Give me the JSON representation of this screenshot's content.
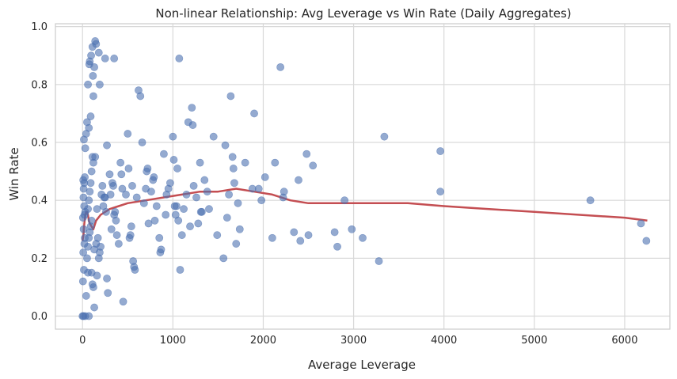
{
  "chart_data": {
    "type": "scatter",
    "title": "Non-linear Relationship: Avg Leverage vs Win Rate (Daily Aggregates)",
    "xlabel": "Average Leverage",
    "ylabel": "Win Rate",
    "xlim": [
      -300,
      6500
    ],
    "ylim": [
      -0.045,
      1.01
    ],
    "x_ticks": [
      0,
      1000,
      2000,
      3000,
      4000,
      5000,
      6000
    ],
    "x_tick_labels": [
      "0",
      "1000",
      "2000",
      "3000",
      "4000",
      "5000",
      "6000"
    ],
    "y_ticks": [
      0.0,
      0.2,
      0.4,
      0.6,
      0.8,
      1.0
    ],
    "y_tick_labels": [
      "0.0",
      "0.2",
      "0.4",
      "0.6",
      "0.8",
      "1.0"
    ],
    "grid": true,
    "legend": "none",
    "colors": {
      "scatter": "#4C72B0",
      "trend": "#C44E52",
      "grid": "#D9D9D9",
      "spine": "#CCCCCC"
    },
    "scatter_points": [
      [
        0,
        0
      ],
      [
        10,
        0
      ],
      [
        30,
        0
      ],
      [
        70,
        0
      ],
      [
        5,
        0.12
      ],
      [
        15,
        0.16
      ],
      [
        8,
        0.22
      ],
      [
        20,
        0.25
      ],
      [
        25,
        0.27
      ],
      [
        12,
        0.3
      ],
      [
        5,
        0.34
      ],
      [
        22,
        0.35
      ],
      [
        30,
        0.36
      ],
      [
        18,
        0.38
      ],
      [
        10,
        0.41
      ],
      [
        12,
        0.44
      ],
      [
        18,
        0.46
      ],
      [
        8,
        0.47
      ],
      [
        25,
        0.48
      ],
      [
        30,
        0.58
      ],
      [
        15,
        0.61
      ],
      [
        40,
        0.63
      ],
      [
        50,
        0.67
      ],
      [
        60,
        0.8
      ],
      [
        70,
        0.65
      ],
      [
        75,
        0.87
      ],
      [
        80,
        0.88
      ],
      [
        90,
        0.69
      ],
      [
        95,
        0.9
      ],
      [
        110,
        0.93
      ],
      [
        120,
        0.76
      ],
      [
        115,
        0.83
      ],
      [
        130,
        0.86
      ],
      [
        140,
        0.95
      ],
      [
        150,
        0.94
      ],
      [
        180,
        0.91
      ],
      [
        190,
        0.8
      ],
      [
        250,
        0.89
      ],
      [
        350,
        0.89
      ],
      [
        60,
        0.15
      ],
      [
        40,
        0.07
      ],
      [
        100,
        0.15
      ],
      [
        120,
        0.1
      ],
      [
        110,
        0.11
      ],
      [
        130,
        0.03
      ],
      [
        160,
        0.14
      ],
      [
        50,
        0.2
      ],
      [
        60,
        0.24
      ],
      [
        70,
        0.27
      ],
      [
        80,
        0.29
      ],
      [
        90,
        0.31
      ],
      [
        100,
        0.33
      ],
      [
        60,
        0.37
      ],
      [
        70,
        0.4
      ],
      [
        80,
        0.43
      ],
      [
        90,
        0.46
      ],
      [
        100,
        0.5
      ],
      [
        120,
        0.53
      ],
      [
        110,
        0.55
      ],
      [
        140,
        0.55
      ],
      [
        160,
        0.37
      ],
      [
        130,
        0.23
      ],
      [
        150,
        0.25
      ],
      [
        170,
        0.27
      ],
      [
        180,
        0.2
      ],
      [
        190,
        0.22
      ],
      [
        200,
        0.24
      ],
      [
        210,
        0.42
      ],
      [
        220,
        0.45
      ],
      [
        230,
        0.38
      ],
      [
        240,
        0.41
      ],
      [
        250,
        0.41
      ],
      [
        260,
        0.36
      ],
      [
        270,
        0.13
      ],
      [
        280,
        0.08
      ],
      [
        270,
        0.59
      ],
      [
        300,
        0.49
      ],
      [
        310,
        0.42
      ],
      [
        320,
        0.3
      ],
      [
        330,
        0.46
      ],
      [
        340,
        0.45
      ],
      [
        350,
        0.35
      ],
      [
        360,
        0.36
      ],
      [
        370,
        0.33
      ],
      [
        380,
        0.28
      ],
      [
        400,
        0.25
      ],
      [
        420,
        0.53
      ],
      [
        440,
        0.44
      ],
      [
        430,
        0.49
      ],
      [
        450,
        0.05
      ],
      [
        480,
        0.42
      ],
      [
        500,
        0.63
      ],
      [
        510,
        0.51
      ],
      [
        520,
        0.27
      ],
      [
        530,
        0.28
      ],
      [
        540,
        0.31
      ],
      [
        550,
        0.45
      ],
      [
        560,
        0.19
      ],
      [
        570,
        0.17
      ],
      [
        580,
        0.16
      ],
      [
        600,
        0.41
      ],
      [
        620,
        0.78
      ],
      [
        640,
        0.76
      ],
      [
        660,
        0.6
      ],
      [
        680,
        0.39
      ],
      [
        700,
        0.44
      ],
      [
        710,
        0.5
      ],
      [
        720,
        0.51
      ],
      [
        730,
        0.32
      ],
      [
        760,
        0.43
      ],
      [
        780,
        0.47
      ],
      [
        790,
        0.48
      ],
      [
        800,
        0.33
      ],
      [
        820,
        0.38
      ],
      [
        850,
        0.27
      ],
      [
        860,
        0.22
      ],
      [
        870,
        0.23
      ],
      [
        900,
        0.56
      ],
      [
        920,
        0.35
      ],
      [
        930,
        0.42
      ],
      [
        950,
        0.44
      ],
      [
        970,
        0.46
      ],
      [
        1000,
        0.62
      ],
      [
        1010,
        0.54
      ],
      [
        1020,
        0.38
      ],
      [
        1030,
        0.35
      ],
      [
        1040,
        0.38
      ],
      [
        1050,
        0.51
      ],
      [
        1060,
        0.33
      ],
      [
        1080,
        0.16
      ],
      [
        1100,
        0.28
      ],
      [
        1120,
        0.37
      ],
      [
        1150,
        0.42
      ],
      [
        1170,
        0.67
      ],
      [
        1190,
        0.31
      ],
      [
        1210,
        0.72
      ],
      [
        1220,
        0.66
      ],
      [
        1230,
        0.45
      ],
      [
        1260,
        0.41
      ],
      [
        1280,
        0.32
      ],
      [
        1300,
        0.53
      ],
      [
        1310,
        0.36
      ],
      [
        1320,
        0.36
      ],
      [
        1350,
        0.47
      ],
      [
        1380,
        0.43
      ],
      [
        1400,
        0.37
      ],
      [
        1450,
        0.62
      ],
      [
        1490,
        0.28
      ],
      [
        1560,
        0.2
      ],
      [
        1580,
        0.59
      ],
      [
        1600,
        0.34
      ],
      [
        1620,
        0.42
      ],
      [
        1640,
        0.76
      ],
      [
        1660,
        0.55
      ],
      [
        1670,
        0.51
      ],
      [
        1680,
        0.46
      ],
      [
        1700,
        0.25
      ],
      [
        1720,
        0.39
      ],
      [
        1740,
        0.3
      ],
      [
        1800,
        0.53
      ],
      [
        1880,
        0.44
      ],
      [
        1900,
        0.7
      ],
      [
        1950,
        0.44
      ],
      [
        1980,
        0.4
      ],
      [
        2020,
        0.48
      ],
      [
        2100,
        0.27
      ],
      [
        2130,
        0.53
      ],
      [
        2190,
        0.86
      ],
      [
        2220,
        0.41
      ],
      [
        2230,
        0.43
      ],
      [
        2340,
        0.29
      ],
      [
        2390,
        0.47
      ],
      [
        2410,
        0.26
      ],
      [
        2480,
        0.56
      ],
      [
        2500,
        0.28
      ],
      [
        2550,
        0.52
      ],
      [
        2790,
        0.29
      ],
      [
        2820,
        0.24
      ],
      [
        2900,
        0.4
      ],
      [
        2980,
        0.3
      ],
      [
        3100,
        0.27
      ],
      [
        3280,
        0.19
      ],
      [
        3340,
        0.62
      ],
      [
        3960,
        0.57
      ],
      [
        3960,
        0.43
      ],
      [
        5620,
        0.4
      ],
      [
        6180,
        0.32
      ],
      [
        6240,
        0.26
      ],
      [
        1070,
        0.89
      ]
    ],
    "trend_line": [
      [
        0,
        0.26
      ],
      [
        10,
        0.28
      ],
      [
        20,
        0.32
      ],
      [
        30,
        0.35
      ],
      [
        40,
        0.36
      ],
      [
        50,
        0.36
      ],
      [
        60,
        0.35
      ],
      [
        70,
        0.33
      ],
      [
        80,
        0.32
      ],
      [
        100,
        0.31
      ],
      [
        120,
        0.3
      ],
      [
        150,
        0.33
      ],
      [
        200,
        0.35
      ],
      [
        300,
        0.37
      ],
      [
        400,
        0.38
      ],
      [
        500,
        0.39
      ],
      [
        700,
        0.4
      ],
      [
        900,
        0.41
      ],
      [
        1100,
        0.42
      ],
      [
        1300,
        0.43
      ],
      [
        1500,
        0.43
      ],
      [
        1700,
        0.44
      ],
      [
        1900,
        0.43
      ],
      [
        2100,
        0.42
      ],
      [
        2300,
        0.4
      ],
      [
        2500,
        0.39
      ],
      [
        2700,
        0.39
      ],
      [
        3000,
        0.39
      ],
      [
        3300,
        0.39
      ],
      [
        3600,
        0.39
      ],
      [
        4000,
        0.38
      ],
      [
        4500,
        0.37
      ],
      [
        5000,
        0.36
      ],
      [
        5500,
        0.35
      ],
      [
        6000,
        0.34
      ],
      [
        6250,
        0.33
      ]
    ]
  }
}
